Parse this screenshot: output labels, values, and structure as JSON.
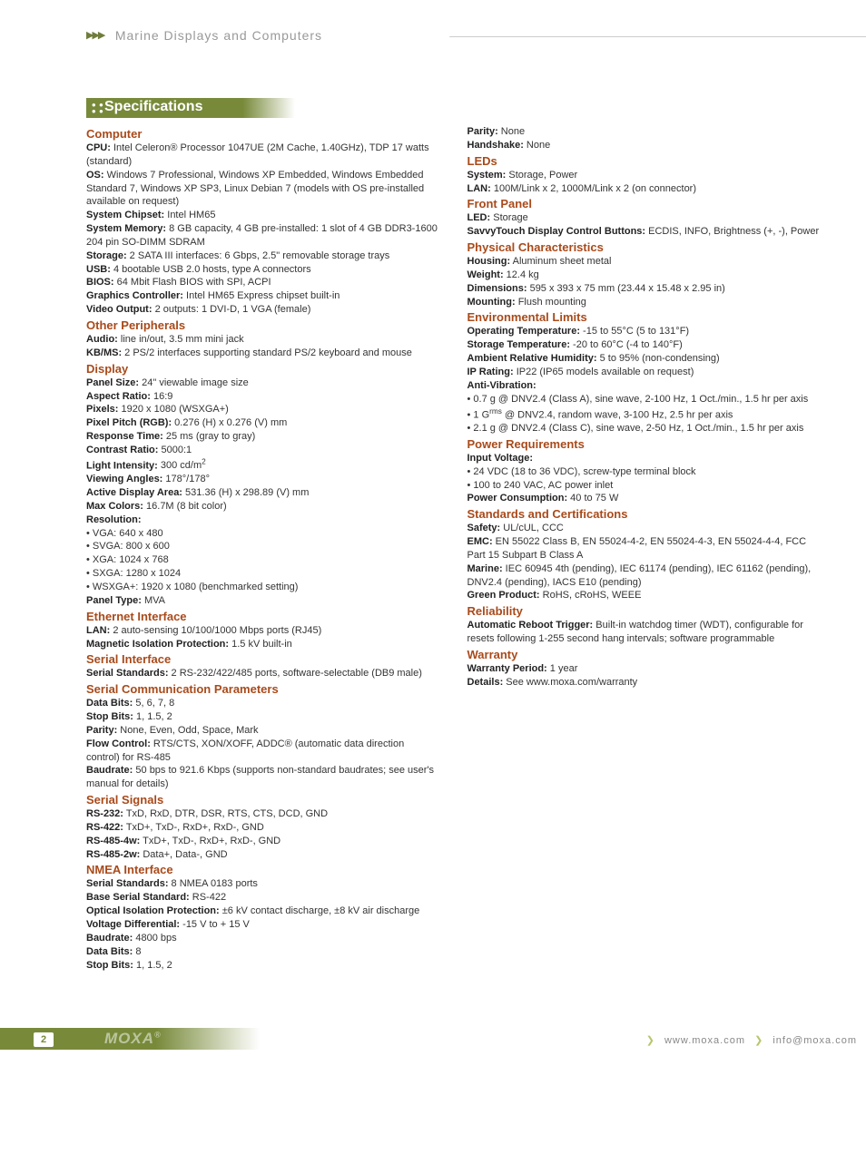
{
  "header": {
    "breadcrumb": "Marine Displays and Computers"
  },
  "banner": {
    "title": "Specifications"
  },
  "col1": [
    {
      "type": "head",
      "text": "Computer"
    },
    {
      "type": "kv",
      "k": "CPU:",
      "v": " Intel Celeron® Processor 1047UE (2M Cache, 1.40GHz), TDP 17 watts (standard)"
    },
    {
      "type": "kv",
      "k": "OS:",
      "v": " Windows 7 Professional, Windows XP Embedded, Windows Embedded Standard 7, Windows XP SP3, Linux Debian 7  (models with OS pre-installed available on request)"
    },
    {
      "type": "kv",
      "k": "System Chipset:",
      "v": " Intel HM65"
    },
    {
      "type": "kv",
      "k": "System Memory:",
      "v": " 8 GB capacity, 4 GB pre-installed: 1 slot of 4 GB DDR3-1600 204 pin SO-DIMM SDRAM"
    },
    {
      "type": "kv",
      "k": "Storage:",
      "v": " 2 SATA III interfaces: 6 Gbps, 2.5\" removable storage trays"
    },
    {
      "type": "kv",
      "k": "USB:",
      "v": " 4 bootable USB 2.0 hosts, type A connectors"
    },
    {
      "type": "kv",
      "k": "BIOS:",
      "v": " 64 Mbit Flash BIOS with SPI, ACPI"
    },
    {
      "type": "kv",
      "k": "Graphics Controller:",
      "v": " Intel HM65 Express chipset built-in"
    },
    {
      "type": "kv",
      "k": "Video Output:",
      "v": " 2 outputs: 1 DVI-D, 1 VGA (female)"
    },
    {
      "type": "head",
      "text": "Other Peripherals"
    },
    {
      "type": "kv",
      "k": "Audio:",
      "v": " line in/out, 3.5 mm mini jack"
    },
    {
      "type": "kv",
      "k": "KB/MS:",
      "v": " 2 PS/2 interfaces supporting standard PS/2 keyboard and mouse"
    },
    {
      "type": "head",
      "text": "Display"
    },
    {
      "type": "kv",
      "k": "Panel Size:",
      "v": " 24\" viewable image size"
    },
    {
      "type": "kv",
      "k": "Aspect Ratio:",
      "v": " 16:9"
    },
    {
      "type": "kv",
      "k": "Pixels:",
      "v": " 1920 x 1080 (WSXGA+)"
    },
    {
      "type": "kv",
      "k": "Pixel Pitch (RGB):",
      "v": " 0.276 (H) x 0.276 (V) mm"
    },
    {
      "type": "kv",
      "k": "Response Time:",
      "v": " 25 ms (gray to gray)"
    },
    {
      "type": "kv",
      "k": "Contrast Ratio:",
      "v": " 5000:1"
    },
    {
      "type": "kvhtml",
      "k": "Light Intensity:",
      "v": " 300 cd/m<sup>2</sup>"
    },
    {
      "type": "kv",
      "k": "Viewing Angles:",
      "v": " 178°/178°"
    },
    {
      "type": "kv",
      "k": "Active Display Area:",
      "v": " 531.36 (H) x 298.89 (V) mm"
    },
    {
      "type": "kv",
      "k": "Max Colors:",
      "v": " 16.7M (8 bit color)"
    },
    {
      "type": "kv",
      "k": "Resolution:",
      "v": ""
    },
    {
      "type": "bullet",
      "text": "• VGA: 640 x 480"
    },
    {
      "type": "bullet",
      "text": "• SVGA: 800 x 600"
    },
    {
      "type": "bullet",
      "text": "• XGA: 1024 x 768"
    },
    {
      "type": "bullet",
      "text": "• SXGA: 1280 x 1024"
    },
    {
      "type": "bullet",
      "text": "• WSXGA+: 1920 x 1080 (benchmarked setting)"
    },
    {
      "type": "kv",
      "k": "Panel Type:",
      "v": " MVA"
    },
    {
      "type": "head",
      "text": "Ethernet Interface"
    },
    {
      "type": "kv",
      "k": "LAN:",
      "v": " 2 auto-sensing 10/100/1000 Mbps ports (RJ45)"
    },
    {
      "type": "kv",
      "k": "Magnetic Isolation Protection:",
      "v": " 1.5 kV built-in"
    },
    {
      "type": "head",
      "text": "Serial Interface"
    },
    {
      "type": "kv",
      "k": "Serial Standards:",
      "v": " 2 RS-232/422/485 ports, software-selectable (DB9 male)"
    },
    {
      "type": "head",
      "text": "Serial Communication Parameters"
    },
    {
      "type": "kv",
      "k": "Data Bits:",
      "v": " 5, 6, 7, 8"
    },
    {
      "type": "kv",
      "k": "Stop Bits:",
      "v": " 1, 1.5, 2"
    },
    {
      "type": "kv",
      "k": "Parity:",
      "v": " None, Even, Odd, Space, Mark"
    },
    {
      "type": "kv",
      "k": "Flow Control:",
      "v": " RTS/CTS, XON/XOFF, ADDC® (automatic data direction control) for RS-485"
    },
    {
      "type": "kv",
      "k": "Baudrate:",
      "v": " 50 bps to 921.6 Kbps (supports non-standard baudrates; see user's manual for details)"
    },
    {
      "type": "head",
      "text": "Serial Signals"
    },
    {
      "type": "kv",
      "k": "RS-232:",
      "v": " TxD, RxD, DTR, DSR, RTS, CTS, DCD, GND"
    },
    {
      "type": "kv",
      "k": "RS-422:",
      "v": " TxD+, TxD-, RxD+, RxD-, GND"
    },
    {
      "type": "kv",
      "k": "RS-485-4w:",
      "v": " TxD+, TxD-, RxD+, RxD-, GND"
    },
    {
      "type": "kv",
      "k": "RS-485-2w:",
      "v": " Data+, Data-, GND"
    },
    {
      "type": "head",
      "text": "NMEA Interface"
    },
    {
      "type": "kv",
      "k": "Serial Standards:",
      "v": " 8 NMEA 0183 ports"
    },
    {
      "type": "kv",
      "k": "Base Serial Standard:",
      "v": " RS-422"
    },
    {
      "type": "kv",
      "k": "Optical Isolation Protection:",
      "v": " ±6 kV contact discharge, ±8 kV air discharge"
    },
    {
      "type": "kv",
      "k": "Voltage Differential:",
      "v": " -15 V to + 15 V"
    },
    {
      "type": "kv",
      "k": "Baudrate:",
      "v": " 4800 bps"
    },
    {
      "type": "kv",
      "k": "Data Bits:",
      "v": " 8"
    },
    {
      "type": "kv",
      "k": "Stop Bits:",
      "v": " 1, 1.5, 2"
    }
  ],
  "col2": [
    {
      "type": "kv",
      "k": "Parity:",
      "v": " None"
    },
    {
      "type": "kv",
      "k": "Handshake:",
      "v": " None"
    },
    {
      "type": "head",
      "text": "LEDs"
    },
    {
      "type": "kv",
      "k": "System:",
      "v": " Storage, Power"
    },
    {
      "type": "kv",
      "k": "LAN:",
      "v": " 100M/Link x 2, 1000M/Link x 2 (on connector)"
    },
    {
      "type": "head",
      "text": "Front Panel"
    },
    {
      "type": "kv",
      "k": "LED:",
      "v": " Storage"
    },
    {
      "type": "kv",
      "k": "SavvyTouch Display Control Buttons:",
      "v": " ECDIS, INFO, Brightness (+, -), Power"
    },
    {
      "type": "head",
      "text": "Physical Characteristics"
    },
    {
      "type": "kv",
      "k": "Housing:",
      "v": " Aluminum sheet metal"
    },
    {
      "type": "kv",
      "k": "Weight:",
      "v": " 12.4 kg"
    },
    {
      "type": "kv",
      "k": "Dimensions:",
      "v": " 595 x 393 x 75 mm (23.44 x 15.48 x 2.95 in)"
    },
    {
      "type": "kv",
      "k": "Mounting:",
      "v": " Flush mounting"
    },
    {
      "type": "head",
      "text": "Environmental Limits"
    },
    {
      "type": "kv",
      "k": "Operating Temperature:",
      "v": " -15 to 55°C (5 to 131°F)"
    },
    {
      "type": "kv",
      "k": "Storage Temperature:",
      "v": " -20 to 60°C (-4 to 140°F)"
    },
    {
      "type": "kv",
      "k": "Ambient Relative Humidity:",
      "v": " 5 to 95% (non-condensing)"
    },
    {
      "type": "kv",
      "k": "IP Rating:",
      "v": " IP22 (IP65 models available on request)"
    },
    {
      "type": "kv",
      "k": "Anti-Vibration:",
      "v": ""
    },
    {
      "type": "bullet",
      "text": "• 0.7 g @ DNV2.4 (Class A), sine wave, 2-100 Hz, 1 Oct./min., 1.5 hr per axis"
    },
    {
      "type": "bullethtml",
      "text": "• 1 G<sup>rms</sup> @ DNV2.4, random wave, 3-100 Hz, 2.5 hr per axis"
    },
    {
      "type": "bullet",
      "text": "• 2.1 g @ DNV2.4 (Class C), sine wave, 2-50 Hz, 1 Oct./min., 1.5 hr per axis"
    },
    {
      "type": "head",
      "text": "Power Requirements"
    },
    {
      "type": "kv",
      "k": "Input Voltage:",
      "v": ""
    },
    {
      "type": "bullet",
      "text": "• 24 VDC (18 to 36 VDC), screw-type terminal block"
    },
    {
      "type": "bullet",
      "text": "• 100 to 240 VAC, AC power inlet"
    },
    {
      "type": "kv",
      "k": "Power Consumption:",
      "v": " 40 to 75 W"
    },
    {
      "type": "head",
      "text": "Standards and Certifications"
    },
    {
      "type": "kv",
      "k": "Safety:",
      "v": " UL/cUL, CCC"
    },
    {
      "type": "kv",
      "k": "EMC:",
      "v": " EN 55022 Class B, EN 55024-4-2, EN 55024-4-3, EN 55024-4-4, FCC Part 15 Subpart B Class A"
    },
    {
      "type": "kv",
      "k": "Marine:",
      "v": " IEC 60945 4th (pending), IEC 61174 (pending), IEC 61162 (pending), DNV2.4 (pending), IACS E10 (pending)"
    },
    {
      "type": "kv",
      "k": "Green Product:",
      "v": " RoHS, cRoHS, WEEE"
    },
    {
      "type": "head",
      "text": "Reliability"
    },
    {
      "type": "kv",
      "k": "Automatic Reboot Trigger:",
      "v": " Built-in watchdog timer (WDT), configurable for resets following 1-255 second hang intervals; software programmable"
    },
    {
      "type": "head",
      "text": "Warranty"
    },
    {
      "type": "kv",
      "k": "Warranty Period:",
      "v": " 1 year"
    },
    {
      "type": "kv",
      "k": "Details:",
      "v": " See www.moxa.com/warranty"
    }
  ],
  "footer": {
    "page": "2",
    "logo": "MOXA",
    "url": "www.moxa.com",
    "email": "info@moxa.com"
  }
}
